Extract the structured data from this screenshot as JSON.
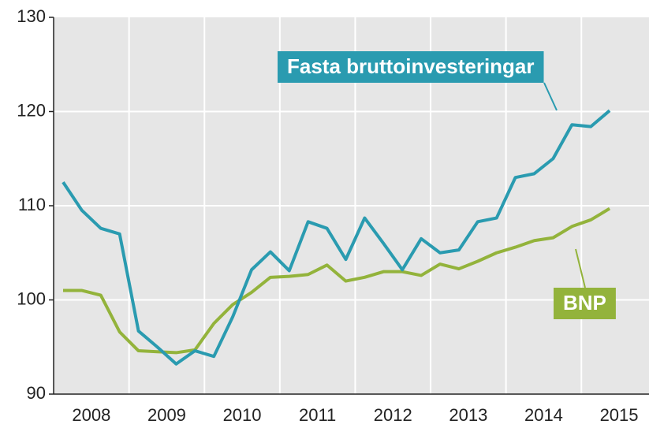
{
  "chart_data": {
    "type": "line",
    "categories": [
      "2008",
      null,
      null,
      null,
      "2009",
      null,
      null,
      null,
      "2010",
      null,
      null,
      null,
      "2011",
      null,
      null,
      null,
      "2012",
      null,
      null,
      null,
      "2013",
      null,
      null,
      null,
      "2014",
      null,
      null,
      null,
      "2015",
      null
    ],
    "series": [
      {
        "name": "Fasta bruttoinvesteringar",
        "color": "#2a9bb0",
        "values": [
          112.5,
          109.5,
          107.6,
          107,
          96.7,
          95,
          93.2,
          94.6,
          94,
          98.2,
          103.2,
          105.1,
          103.1,
          108.3,
          107.6,
          104.3,
          108.7,
          106,
          103.2,
          106.5,
          105,
          105.3,
          108.3,
          108.7,
          113,
          113.4,
          115,
          118.6,
          118.4,
          120.1
        ]
      },
      {
        "name": "BNP",
        "color": "#93b33b",
        "values": [
          101,
          101,
          100.5,
          96.6,
          94.6,
          94.5,
          94.4,
          94.7,
          97.5,
          99.5,
          100.8,
          102.4,
          102.5,
          102.7,
          103.7,
          102,
          102.4,
          103,
          103,
          102.6,
          103.8,
          103.3,
          104.1,
          105,
          105.6,
          106.3,
          106.6,
          107.8,
          108.5,
          109.7
        ]
      }
    ],
    "ylim": [
      90,
      130
    ],
    "yticks": [
      90,
      100,
      110,
      120,
      130
    ],
    "grid": true
  }
}
